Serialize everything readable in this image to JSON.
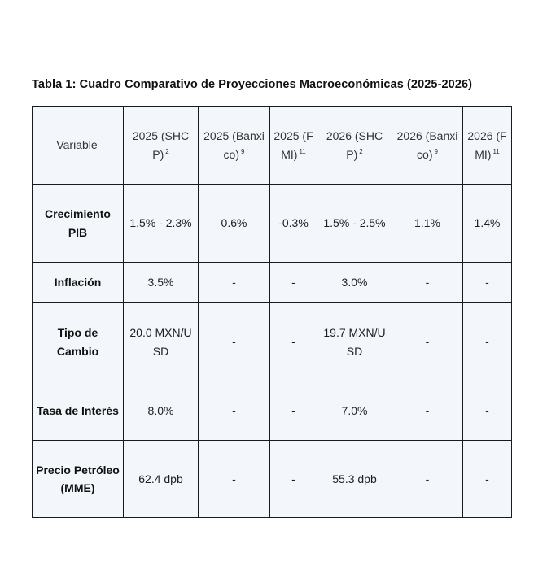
{
  "caption": "Tabla 1: Cuadro Comparativo de Proyecciones Macroeconómicas (2025-2026)",
  "headers": [
    {
      "label": "Variable",
      "sup": ""
    },
    {
      "label": "2025 (SHCP)",
      "sup": "2"
    },
    {
      "label": "2025 (Banxico)",
      "sup": "9"
    },
    {
      "label": "2025 (FMI)",
      "sup": "11"
    },
    {
      "label": "2026 (SHCP)",
      "sup": "2"
    },
    {
      "label": "2026 (Banxico)",
      "sup": "9"
    },
    {
      "label": "2026 (FMI)",
      "sup": "11"
    }
  ],
  "rows": [
    {
      "variable": "Crecimiento PIB",
      "values": [
        "1.5% - 2.3%",
        "0.6%",
        "-0.3%",
        "1.5% - 2.5%",
        "1.1%",
        "1.4%"
      ]
    },
    {
      "variable": "Inflación",
      "values": [
        "3.5%",
        "-",
        "-",
        "3.0%",
        "-",
        "-"
      ]
    },
    {
      "variable": "Tipo de Cambio",
      "values": [
        "20.0 MXN/USD",
        "-",
        "-",
        "19.7 MXN/USD",
        "-",
        "-"
      ]
    },
    {
      "variable": "Tasa de Interés",
      "values": [
        "8.0%",
        "-",
        "-",
        "7.0%",
        "-",
        "-"
      ]
    },
    {
      "variable": "Precio Petróleo (MME)",
      "values": [
        "62.4 dpb",
        "-",
        "-",
        "55.3 dpb",
        "-",
        "-"
      ]
    }
  ]
}
